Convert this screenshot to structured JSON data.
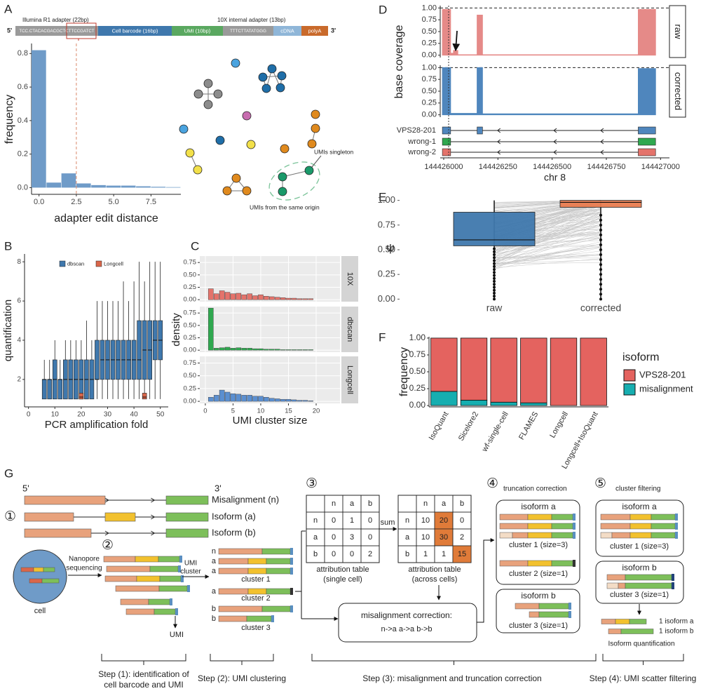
{
  "panel_labels": [
    "A",
    "B",
    "C",
    "D",
    "E",
    "F",
    "G"
  ],
  "panel_a": {
    "five": "5'",
    "three": "3'",
    "adapter_labels": [
      "Illumina R1 adapter (22bp)",
      "10X internal adapter (13bp)"
    ],
    "segments": [
      "TCC.CTACACGACGCTCTTCCGATCT",
      "Cell barcode (16bp)",
      "UMI (10bp)",
      "TTTCTTATATGGG",
      "cDNA",
      "polyA"
    ],
    "network_labels": [
      "UMIs singleton",
      "UMIs from the same origin"
    ]
  },
  "chart_data": [
    {
      "type": "histogram",
      "xlabel": "adapter edit distance",
      "ylabel": "frequency",
      "color": "#6f9bc8",
      "bins": [
        -0.5,
        0.5,
        1.5,
        2.5,
        3.5,
        4.5,
        5.5,
        6.5,
        7.5,
        8.5,
        9.5
      ],
      "values": [
        0.82,
        0.03,
        0.085,
        0.025,
        0.015,
        0.012,
        0.012,
        0.008,
        0.005,
        0.003
      ],
      "threshold": 2.5,
      "xlim": [
        -0.5,
        9.5
      ],
      "ylim": [
        -0.04,
        0.86
      ],
      "xticks": [
        {
          "value": 0,
          "label": "0.0"
        },
        2.5,
        {
          "value": 5,
          "label": "5.0"
        },
        7.5
      ],
      "yticks": [
        {
          "value": 0,
          "label": "0.0"
        },
        0.2,
        0.4,
        0.6,
        0.8
      ]
    },
    {
      "type": "box",
      "xlabel": "PCR amplification fold",
      "ylabel": "quantification",
      "legend": "top",
      "xlim": [
        -1.5,
        53
      ],
      "ylim": [
        0.6,
        8.4
      ],
      "xticks": [
        0,
        10,
        20,
        30,
        40,
        50
      ],
      "yticks": [
        2,
        4,
        6,
        8
      ],
      "series": [
        {
          "name": "dbscan",
          "color": "#3f78ad",
          "x": [
            6,
            8,
            10,
            12,
            14,
            16,
            18,
            20,
            22,
            24,
            26,
            28,
            30,
            32,
            34,
            36,
            38,
            40,
            42,
            44,
            46,
            48,
            50
          ],
          "low": [
            1,
            1,
            1,
            1,
            1,
            1,
            1,
            1,
            1,
            1,
            1,
            1,
            1,
            1,
            1,
            1,
            1,
            1,
            1,
            1,
            1,
            1,
            1
          ],
          "q1": [
            1,
            1,
            1,
            1,
            1,
            1,
            1,
            1,
            1,
            1,
            2,
            2,
            2,
            2,
            2,
            2,
            2,
            2,
            2,
            2,
            2,
            3,
            3
          ],
          "median": [
            2,
            2,
            2,
            2,
            2,
            2,
            2,
            2,
            2,
            2,
            2,
            3,
            3,
            3,
            3,
            3,
            3,
            3,
            3,
            3.5,
            3.5,
            4,
            4
          ],
          "q3": [
            2,
            2,
            3,
            2,
            3,
            3,
            3,
            3,
            3,
            3,
            4,
            4,
            4,
            4,
            4,
            4,
            4,
            4,
            5,
            5,
            5,
            5,
            5
          ],
          "high": [
            3,
            3,
            4,
            3,
            4,
            4,
            4,
            4,
            5,
            4,
            6,
            6,
            6,
            6,
            6,
            7,
            6,
            7,
            8,
            7,
            8,
            8,
            8
          ]
        },
        {
          "name": "Longcell",
          "color": "#d9664a",
          "x": [
            20,
            44
          ],
          "low": [
            1,
            1
          ],
          "q1": [
            1,
            1
          ],
          "median": [
            1.1,
            1.1
          ],
          "q3": [
            1.3,
            1.3
          ],
          "high": [
            1.3,
            1.3
          ]
        }
      ]
    },
    {
      "type": "bar",
      "facet": "10X",
      "color": "#e4736b",
      "grid": true,
      "x": [
        1,
        2,
        3,
        4,
        5,
        6,
        7,
        8,
        9,
        10,
        11,
        12,
        13,
        14,
        15,
        16,
        17,
        18,
        19
      ],
      "values": [
        0.22,
        0.12,
        0.18,
        0.15,
        0.12,
        0.13,
        0.1,
        0.12,
        0.08,
        0.1,
        0.07,
        0.06,
        0.05,
        0.04,
        0.03,
        0.03,
        0.02,
        0.02,
        0.02
      ],
      "xlim": [
        -1,
        24.3
      ],
      "ylim": [
        -0.04,
        0.88
      ],
      "yticks": [
        {
          "value": 0,
          "label": "0.00"
        },
        0.25,
        {
          "value": 0.5,
          "label": "0.50"
        },
        0.75
      ]
    },
    {
      "type": "bar",
      "facet": "dbscan",
      "color": "#2fa84f",
      "grid": true,
      "ylabel": "density",
      "x": [
        1,
        2,
        3,
        4,
        5,
        6,
        7,
        8,
        9,
        10,
        11,
        12,
        13,
        14,
        15,
        16,
        17,
        18,
        19
      ],
      "values": [
        0.85,
        0.04,
        0.05,
        0.06,
        0.04,
        0.05,
        0.04,
        0.04,
        0.03,
        0.03,
        0.02,
        0.02,
        0.02,
        0.01,
        0.01,
        0.01,
        0.01,
        0.01,
        0.01
      ],
      "xlim": [
        -1,
        24.3
      ],
      "ylim": [
        -0.04,
        0.88
      ],
      "yticks": [
        {
          "value": 0,
          "label": "0.00"
        },
        0.25,
        {
          "value": 0.5,
          "label": "0.50"
        },
        0.75
      ]
    },
    {
      "type": "bar",
      "facet": "Longcell",
      "color": "#5b8fd0",
      "grid": true,
      "xlabel": "UMI cluster size",
      "x": [
        1,
        2,
        3,
        4,
        5,
        6,
        7,
        8,
        9,
        10,
        11,
        12,
        13,
        14,
        15,
        16,
        17,
        18,
        19
      ],
      "values": [
        0.08,
        0.12,
        0.22,
        0.18,
        0.15,
        0.14,
        0.12,
        0.12,
        0.1,
        0.1,
        0.08,
        0.06,
        0.05,
        0.04,
        0.04,
        0.03,
        0.02,
        0.02,
        0.01
      ],
      "xlim": [
        -1,
        24.3
      ],
      "ylim": [
        -0.04,
        0.88
      ],
      "xticks": [
        0,
        5,
        10,
        15,
        20
      ],
      "yticks": [
        {
          "value": 0,
          "label": "0.00"
        },
        0.25,
        {
          "value": 0.5,
          "label": "0.50"
        },
        0.75
      ]
    },
    {
      "type": "area",
      "facet": "raw",
      "ylabel": "base coverage",
      "color": "#e58a88",
      "x": [
        144425994,
        144425994,
        144426032,
        144426032,
        144426045,
        144426045,
        144426065,
        144426065,
        144426154,
        144426154,
        144426179,
        144426179,
        144426897,
        144426897,
        144426977,
        144426977
      ],
      "values": [
        0,
        0.97,
        0.97,
        0.04,
        0.04,
        0.1,
        0.1,
        0.01,
        0.01,
        0.85,
        0.85,
        0.01,
        0.01,
        0.97,
        0.97,
        0
      ],
      "xlim": [
        144425984,
        144427041
      ],
      "ylim": [
        -0.05,
        1.05
      ],
      "yticks": [
        {
          "value": 0,
          "label": "0.00"
        },
        0.25,
        {
          "value": 0.5,
          "label": "0.50"
        },
        0.75,
        {
          "value": 1,
          "label": "1.00"
        }
      ]
    },
    {
      "type": "area",
      "facet": "corrected",
      "xlabel": "chr 8",
      "color": "#4f86bd",
      "x": [
        144425994,
        144425994,
        144426032,
        144426032,
        144426154,
        144426154,
        144426179,
        144426179,
        144426897,
        144426897,
        144426977,
        144426977
      ],
      "values": [
        0,
        1,
        1,
        0.03,
        0.03,
        1,
        1,
        0.02,
        0.02,
        0.98,
        0.98,
        0
      ],
      "xlim": [
        144425984,
        144427041
      ],
      "ylim": [
        -0.05,
        1.05
      ],
      "xticks": [
        144426000,
        144426250,
        144426500,
        144426750,
        144427000
      ],
      "yticks": [
        {
          "value": 0,
          "label": "0.00"
        },
        0.25,
        {
          "value": 0.5,
          "label": "0.50"
        },
        0.75,
        {
          "value": 1,
          "label": "1.00"
        }
      ],
      "transcripts": [
        {
          "name": "VPS28-201",
          "color": "#4f86bd",
          "exons": [
            [
              144425994,
              144426032
            ],
            [
              144426154,
              144426179
            ],
            [
              144426897,
              144426977
            ]
          ]
        },
        {
          "name": "wrong-1",
          "color": "#2fa84f",
          "exons": [
            [
              144425994,
              144426032
            ],
            [
              144426897,
              144426977
            ]
          ]
        },
        {
          "name": "wrong-2",
          "color": "#e4736b",
          "exons": [
            [
              144425994,
              144426032
            ],
            [
              144426897,
              144426977
            ]
          ]
        }
      ]
    },
    {
      "type": "box",
      "ylabel": "ψ",
      "categories": [
        "raw",
        "corrected"
      ],
      "colors": [
        "#3f78ad",
        "#e97c50"
      ],
      "low": [
        0,
        0
      ],
      "q1": [
        0.54,
        0.93
      ],
      "median": [
        0.6,
        0.98
      ],
      "q3": [
        0.88,
        1.0
      ],
      "high": [
        1.0,
        1.0
      ],
      "ylim": [
        -0.04,
        1.04
      ],
      "yticks": [
        {
          "value": 0,
          "label": "0.00"
        },
        0.25,
        {
          "value": 0.5,
          "label": "0.50"
        },
        0.75,
        {
          "value": 1,
          "label": "1.00"
        }
      ]
    },
    {
      "type": "stacked_bar",
      "ylabel": "frequency",
      "legend_title": "isoform",
      "categories": [
        "IsoQuant",
        "Sicelore2",
        "wf-single-cell",
        "FLAMES",
        "Longcell",
        "Longcell+IsoQuant"
      ],
      "series": [
        {
          "name": "VPS28-201",
          "color": "#e4635f",
          "values": [
            0.79,
            0.92,
            0.95,
            0.96,
            1.0,
            1.0
          ]
        },
        {
          "name": "misalignment",
          "color": "#16aeb0",
          "values": [
            0.21,
            0.08,
            0.05,
            0.04,
            0,
            0
          ]
        }
      ],
      "ylim": [
        -0.02,
        1.02
      ],
      "yticks": [
        {
          "value": 0,
          "label": "0.00"
        },
        0.25,
        {
          "value": 0.5,
          "label": "0.50"
        },
        0.75,
        {
          "value": 1,
          "label": "1.00"
        }
      ]
    }
  ],
  "panel_g": {
    "five_prime": "5'",
    "three_prime": "3'",
    "isoforms": [
      "Misalignment (n)",
      "Isoform (a)",
      "Isoform (b)"
    ],
    "circled": [
      "①",
      "②",
      "③",
      "④",
      "⑤"
    ],
    "cell": "cell",
    "nanopore": [
      "Nanopore",
      "sequencing"
    ],
    "umi_cluster": [
      "UMI",
      "cluster"
    ],
    "umi": "UMI",
    "read_labels": [
      "n",
      "a",
      "a",
      "a",
      "b",
      "b"
    ],
    "clusters": [
      "cluster 1",
      "cluster 2",
      "cluster 3"
    ],
    "table_header": [
      "n",
      "a",
      "b"
    ],
    "table_single": [
      [
        0,
        1,
        0
      ],
      [
        0,
        3,
        0
      ],
      [
        0,
        0,
        2
      ]
    ],
    "table_across": [
      [
        10,
        20,
        0
      ],
      [
        10,
        30,
        2
      ],
      [
        1,
        1,
        15
      ]
    ],
    "sum": "sum",
    "table_single_caption": [
      "attribution table",
      "(single cell)"
    ],
    "table_across_caption": [
      "attribution table",
      "(across cells)"
    ],
    "correction_title": "misalignment correction:",
    "correction_rule": "n->a a->a b->b",
    "truncation": "truncation correction",
    "filtering": "cluster filtering",
    "iso_a": "isoform a",
    "iso_b": "isoform b",
    "c1": "cluster 1 (size=3)",
    "c2": "cluster 2 (size=1)",
    "c3": "cluster 3 (size=1)",
    "quant": [
      "1 isoform a",
      "1 isoform b"
    ],
    "quant_caption": "Isoform quantification",
    "step_captions": [
      [
        "Step (1): identification of",
        "cell barcode and UMI"
      ],
      [
        "Step (2): UMI clustering"
      ],
      [
        "Step (3): misalignment and truncation correction"
      ],
      [
        "Step (4): UMI scatter filtering"
      ]
    ]
  }
}
